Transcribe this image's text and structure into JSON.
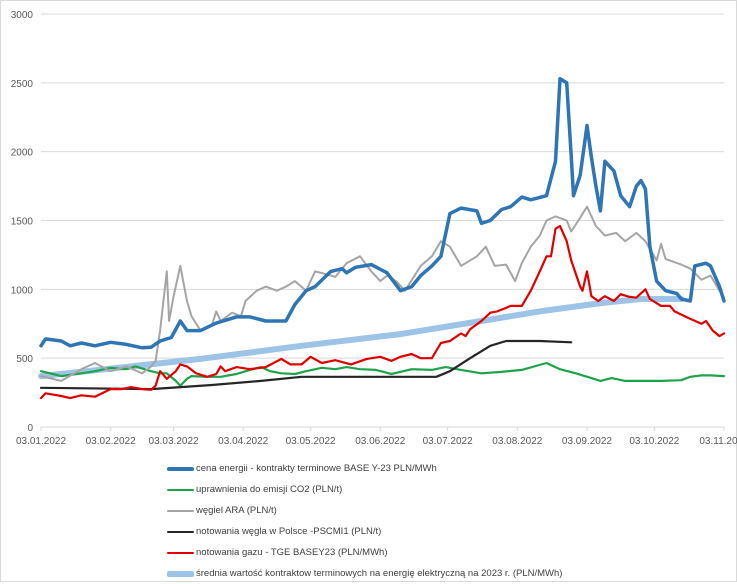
{
  "chart_data": {
    "type": "line",
    "title": "",
    "xlabel": "",
    "ylabel": "",
    "x_unit": "days since 03.01.2022",
    "xlim": [
      0,
      304
    ],
    "ylim": [
      0,
      3000
    ],
    "yticks": [
      0,
      500,
      1000,
      1500,
      2000,
      2500,
      3000
    ],
    "xticks": [
      {
        "day": 0,
        "label": "03.01.2022"
      },
      {
        "day": 31,
        "label": "03.02.2022"
      },
      {
        "day": 59,
        "label": "03.03.2022"
      },
      {
        "day": 90,
        "label": "03.04.2022"
      },
      {
        "day": 120,
        "label": "03.05.2022"
      },
      {
        "day": 151,
        "label": "03.06.2022"
      },
      {
        "day": 181,
        "label": "03.07.2022"
      },
      {
        "day": 212,
        "label": "03.08.2022"
      },
      {
        "day": 243,
        "label": "03.09.2022"
      },
      {
        "day": 273,
        "label": "03.10.2022"
      },
      {
        "day": 304,
        "label": "03.11.2022"
      }
    ],
    "grid": true,
    "legend_position": "bottom",
    "series": [
      {
        "name": "cena energii - kontrakty terminowe BASE Y-23 PLN/MWh",
        "color": "#2e75b6",
        "width": 3.5,
        "x": [
          0,
          2,
          9,
          13,
          18,
          24,
          31,
          38,
          45,
          49,
          53,
          58,
          62,
          65,
          71,
          78,
          87,
          93,
          100,
          109,
          113,
          118,
          122,
          129,
          134,
          136,
          140,
          147,
          154,
          160,
          165,
          169,
          174,
          178,
          182,
          187,
          194,
          196,
          200,
          205,
          209,
          214,
          218,
          225,
          229,
          231,
          234,
          236,
          237,
          240,
          243,
          245,
          247,
          249,
          251,
          255,
          258,
          262,
          265,
          267,
          269,
          271,
          274,
          278,
          283,
          285,
          289,
          291,
          296,
          298,
          302,
          304
        ],
        "y": [
          590,
          640,
          625,
          590,
          610,
          590,
          615,
          600,
          575,
          580,
          625,
          650,
          770,
          700,
          700,
          755,
          800,
          800,
          770,
          770,
          890,
          990,
          1020,
          1130,
          1150,
          1120,
          1160,
          1180,
          1120,
          990,
          1020,
          1100,
          1170,
          1240,
          1550,
          1590,
          1570,
          1480,
          1500,
          1580,
          1600,
          1670,
          1650,
          1680,
          1930,
          2530,
          2500,
          1970,
          1680,
          1830,
          2190,
          1960,
          1750,
          1570,
          1930,
          1860,
          1680,
          1600,
          1750,
          1790,
          1730,
          1310,
          1060,
          990,
          970,
          930,
          915,
          1170,
          1190,
          1170,
          1020,
          915
        ]
      },
      {
        "name": "uprawnienia do emisji CO2 (PLN/t)",
        "color": "#1fa34a",
        "width": 2.2,
        "x": [
          0,
          4,
          9,
          18,
          24,
          31,
          38,
          42,
          49,
          53,
          56,
          60,
          62,
          65,
          67,
          73,
          80,
          87,
          93,
          98,
          102,
          107,
          113,
          118,
          125,
          131,
          136,
          142,
          149,
          156,
          165,
          174,
          180,
          187,
          196,
          205,
          214,
          225,
          231,
          238,
          245,
          249,
          254,
          260,
          269,
          276,
          285,
          289,
          294,
          298,
          304
        ],
        "y": [
          405,
          390,
          370,
          390,
          405,
          430,
          420,
          440,
          405,
          390,
          390,
          335,
          300,
          350,
          370,
          365,
          365,
          385,
          415,
          435,
          405,
          390,
          385,
          405,
          430,
          420,
          435,
          420,
          415,
          385,
          420,
          415,
          435,
          415,
          390,
          400,
          415,
          465,
          420,
          390,
          355,
          335,
          355,
          335,
          335,
          335,
          340,
          365,
          375,
          375,
          370
        ]
      },
      {
        "name": "węgiel ARA (PLN/t)",
        "color": "#a5a5a5",
        "width": 2,
        "x": [
          0,
          9,
          18,
          24,
          31,
          38,
          45,
          49,
          51,
          53,
          56,
          57,
          59,
          62,
          65,
          67,
          71,
          76,
          78,
          80,
          85,
          89,
          91,
          96,
          100,
          105,
          109,
          113,
          118,
          122,
          127,
          131,
          136,
          142,
          147,
          151,
          154,
          158,
          162,
          169,
          174,
          178,
          182,
          187,
          189,
          194,
          198,
          202,
          207,
          211,
          214,
          218,
          222,
          225,
          229,
          234,
          236,
          240,
          243,
          247,
          251,
          256,
          260,
          265,
          269,
          274,
          276,
          278,
          285,
          289,
          294,
          298,
          302,
          304
        ],
        "y": [
          370,
          335,
          420,
          465,
          405,
          440,
          390,
          440,
          480,
          700,
          1130,
          770,
          950,
          1170,
          915,
          805,
          700,
          735,
          840,
          770,
          830,
          805,
          915,
          990,
          1020,
          990,
          1020,
          1060,
          990,
          1130,
          1110,
          1090,
          1190,
          1240,
          1130,
          1060,
          1100,
          1060,
          990,
          1170,
          1240,
          1350,
          1310,
          1170,
          1190,
          1240,
          1310,
          1170,
          1180,
          1060,
          1190,
          1310,
          1390,
          1500,
          1530,
          1500,
          1420,
          1520,
          1600,
          1460,
          1390,
          1410,
          1350,
          1410,
          1350,
          1210,
          1330,
          1220,
          1180,
          1150,
          1070,
          1100,
          990,
          940
        ]
      },
      {
        "name": "notowania węgla w Polsce -PSCMI1 (PLN/t)",
        "color": "#262626",
        "width": 2.2,
        "x": [
          0,
          49,
          76,
          98,
          116,
          147,
          176,
          182,
          191,
          200,
          207,
          222,
          236
        ],
        "y": [
          285,
          275,
          305,
          335,
          365,
          365,
          365,
          405,
          500,
          590,
          625,
          625,
          615
        ]
      },
      {
        "name": "notowania gazu - TGE BASEY23 (PLN/MWh)",
        "color": "#e00000",
        "width": 2.2,
        "x": [
          0,
          2,
          9,
          13,
          18,
          24,
          31,
          36,
          40,
          45,
          49,
          51,
          53,
          56,
          60,
          62,
          65,
          69,
          74,
          78,
          80,
          82,
          87,
          93,
          100,
          107,
          111,
          116,
          120,
          125,
          131,
          138,
          145,
          151,
          156,
          160,
          165,
          169,
          174,
          178,
          182,
          187,
          189,
          191,
          196,
          200,
          203,
          207,
          209,
          214,
          218,
          222,
          225,
          227,
          229,
          231,
          234,
          236,
          240,
          241,
          243,
          245,
          248,
          251,
          255,
          258,
          262,
          265,
          269,
          271,
          276,
          280,
          282,
          289,
          294,
          296,
          299,
          302,
          304
        ],
        "y": [
          210,
          245,
          225,
          210,
          230,
          220,
          275,
          275,
          290,
          275,
          270,
          300,
          405,
          350,
          405,
          455,
          440,
          390,
          365,
          385,
          440,
          405,
          435,
          420,
          435,
          495,
          455,
          455,
          510,
          465,
          485,
          455,
          495,
          510,
          480,
          510,
          530,
          500,
          500,
          610,
          625,
          680,
          660,
          710,
          770,
          830,
          840,
          865,
          880,
          880,
          990,
          1130,
          1240,
          1240,
          1440,
          1460,
          1350,
          1210,
          1020,
          990,
          1130,
          950,
          915,
          950,
          915,
          965,
          945,
          940,
          1000,
          930,
          880,
          880,
          840,
          785,
          750,
          770,
          700,
          660,
          680
        ]
      },
      {
        "name": "średnia wartość kontraktow terminowych na energię elektryczną na 2023 r. (PLN/MWh)",
        "color": "#9dc3e6",
        "width": 6,
        "x": [
          0,
          71,
          116,
          160,
          196,
          222,
          249,
          267,
          285
        ],
        "y": [
          370,
          495,
          590,
          675,
          770,
          840,
          900,
          930,
          930
        ]
      }
    ]
  }
}
